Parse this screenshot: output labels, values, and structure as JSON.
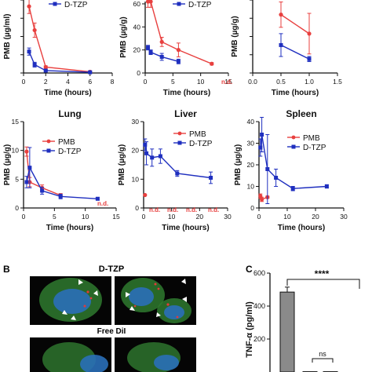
{
  "colors": {
    "pmb": "#e8403f",
    "dtzp": "#1f2fbf",
    "nd": "#e8403f",
    "bar": "#8a8a8a",
    "axis": "#111111"
  },
  "chart_data": [
    {
      "type": "line",
      "title": "",
      "xlabel": "Time (hours)",
      "ylabel": "PMB (µg/ml)",
      "xlim": [
        0,
        8
      ],
      "ylim": [
        0,
        3.2
      ],
      "xticks": [
        "0",
        "2",
        "4",
        "6",
        "8"
      ],
      "legend": [
        "D-TZP"
      ],
      "series": [
        {
          "name": "PMB",
          "x": [
            0.5,
            1,
            2,
            6
          ],
          "y": [
            2.8,
            1.8,
            0.25,
            0.05
          ],
          "err": [
            0.3,
            0.3,
            0.05,
            0.02
          ]
        },
        {
          "name": "D-TZP",
          "x": [
            0.5,
            1,
            2,
            6
          ],
          "y": [
            0.9,
            0.35,
            0.1,
            0.03
          ],
          "err": [
            0.15,
            0.1,
            0.03,
            0.02
          ]
        }
      ]
    },
    {
      "type": "line",
      "title": "",
      "xlabel": "Time (hours)",
      "ylabel": "PMB (µg/g)",
      "xlim": [
        0,
        15
      ],
      "ylim": [
        0,
        62
      ],
      "xticks": [
        "0",
        "5",
        "10",
        "15"
      ],
      "yticks": [
        "0",
        "20",
        "40",
        "60"
      ],
      "legend": [
        "D-TZP"
      ],
      "annotation": "n.d.",
      "series": [
        {
          "name": "PMB",
          "x": [
            0.5,
            1,
            3,
            6,
            12
          ],
          "y": [
            62,
            62,
            27,
            20,
            8
          ],
          "err": [
            5,
            5,
            4,
            6,
            1
          ]
        },
        {
          "name": "D-TZP",
          "x": [
            0.5,
            1,
            3,
            6
          ],
          "y": [
            22,
            18,
            14,
            10
          ],
          "err": [
            2,
            2,
            3,
            2
          ]
        }
      ]
    },
    {
      "type": "line",
      "title": "",
      "xlabel": "Time (hours)",
      "ylabel": "PMB (µg/g)",
      "xlim": [
        0,
        1.5
      ],
      "ylim": [
        0,
        3
      ],
      "xticks": [
        "0.0",
        "0.5",
        "1.0",
        "1.5"
      ],
      "series": [
        {
          "name": "PMB",
          "x": [
            0.5,
            1
          ],
          "y": [
            2.3,
            1.55
          ],
          "err": [
            0.5,
            0.8
          ]
        },
        {
          "name": "D-TZP",
          "x": [
            0.5,
            1
          ],
          "y": [
            1.1,
            0.55
          ],
          "err": [
            0.45,
            0.1
          ]
        }
      ]
    },
    {
      "type": "line",
      "title": "Lung",
      "xlabel": "Time (hours)",
      "ylabel": "PMB (µg/g)",
      "xlim": [
        0,
        15
      ],
      "ylim": [
        0,
        15
      ],
      "xticks": [
        "0",
        "5",
        "10",
        "15"
      ],
      "yticks": [
        "0",
        "5",
        "10",
        "15"
      ],
      "legend": [
        "PMB",
        "D-TZP"
      ],
      "annotation": "n.d.",
      "series": [
        {
          "name": "PMB",
          "x": [
            0.5,
            1,
            3,
            6
          ],
          "y": [
            9.8,
            4.5,
            3.5,
            2.2
          ],
          "err": [
            0.8,
            0.8,
            0.5,
            0.3
          ]
        },
        {
          "name": "D-TZP",
          "x": [
            0.5,
            1,
            3,
            6,
            12
          ],
          "y": [
            4.5,
            7,
            3,
            2,
            1.6
          ],
          "err": [
            1,
            3.5,
            0.6,
            0.4,
            0.2
          ]
        }
      ]
    },
    {
      "type": "line",
      "title": "Liver",
      "xlabel": "Time (hours)",
      "ylabel": "PMB (µg/g)",
      "xlim": [
        0,
        30
      ],
      "ylim": [
        0,
        30
      ],
      "xticks": [
        "0",
        "10",
        "20",
        "30"
      ],
      "yticks": [
        "0",
        "10",
        "20",
        "30"
      ],
      "legend": [
        "PMB",
        "D-TZP"
      ],
      "annotation": "n.d.",
      "series": [
        {
          "name": "PMB",
          "x": [
            0.5
          ],
          "y": [
            4.5
          ],
          "err": [
            0
          ]
        },
        {
          "name": "D-TZP",
          "x": [
            0.5,
            1,
            3,
            6,
            12,
            24
          ],
          "y": [
            22,
            19,
            17.5,
            18,
            12,
            10.5
          ],
          "err": [
            2,
            4,
            3,
            2.5,
            1,
            2
          ]
        }
      ]
    },
    {
      "type": "line",
      "title": "Spleen",
      "xlabel": "Time (hours)",
      "ylabel": "PMB (µg/g)",
      "xlim": [
        0,
        30
      ],
      "ylim": [
        0,
        40
      ],
      "xticks": [
        "0",
        "10",
        "20",
        "30"
      ],
      "yticks": [
        "0",
        "10",
        "20",
        "30",
        "40"
      ],
      "legend": [
        "PMB",
        "D-TZP"
      ],
      "annotation": "n.d.",
      "series": [
        {
          "name": "PMB",
          "x": [
            0.5,
            1,
            3
          ],
          "y": [
            5.5,
            4,
            5
          ],
          "err": [
            1,
            1,
            0.5
          ]
        },
        {
          "name": "D-TZP",
          "x": [
            0.5,
            1,
            3,
            6,
            12,
            24
          ],
          "y": [
            28,
            34,
            18,
            14,
            9,
            10
          ],
          "err": [
            4,
            8,
            16,
            4,
            1,
            0.8
          ]
        }
      ]
    },
    {
      "type": "bar",
      "title": "",
      "ylabel": "TNF-α (pg/ml)",
      "ylim": [
        0,
        600
      ],
      "yticks": [
        "200",
        "400",
        "600"
      ],
      "values": [
        485,
        2,
        2
      ],
      "err": [
        30,
        0,
        0
      ],
      "significance": [
        "****",
        "ns"
      ]
    }
  ],
  "panel_labels": [
    "B",
    "C"
  ],
  "micro_titles": [
    "D-TZP",
    "Free DiI"
  ]
}
